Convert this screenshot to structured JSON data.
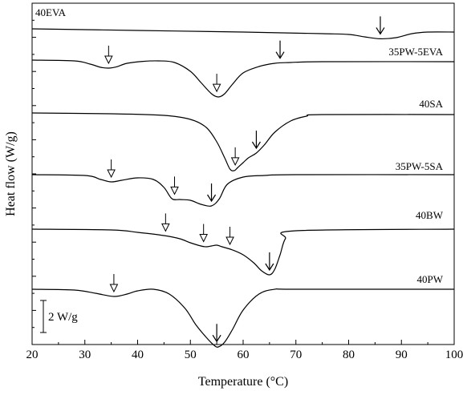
{
  "chart_data": {
    "type": "line",
    "xlabel": "Temperature (°C)",
    "ylabel": "Heat flow (W/g)",
    "xlim": [
      20,
      100
    ],
    "x_ticks": [
      "20",
      "30",
      "40",
      "50",
      "60",
      "70",
      "80",
      "90",
      "100"
    ],
    "scale_bar": {
      "label": "2 W/g",
      "value": 2,
      "unit": "W/g"
    },
    "series": [
      {
        "name": "40EVA",
        "x": [
          20,
          40,
          60,
          75,
          80,
          83,
          86,
          89,
          92,
          95,
          100
        ],
        "y": [
          0.0,
          -0.1,
          -0.2,
          -0.3,
          -0.35,
          -0.5,
          -0.62,
          -0.55,
          -0.3,
          -0.2,
          -0.2
        ],
        "markers": [
          {
            "x": 86,
            "style": "line"
          }
        ]
      },
      {
        "name": "35PW-5EVA",
        "x": [
          20,
          28,
          31,
          33,
          34.5,
          36,
          38,
          41,
          44,
          47,
          50,
          52,
          54,
          55.3,
          56.5,
          58,
          60,
          63,
          66,
          69,
          75,
          100
        ],
        "y": [
          0.0,
          -0.05,
          -0.25,
          -0.45,
          -0.5,
          -0.42,
          -0.2,
          -0.08,
          -0.05,
          -0.15,
          -0.7,
          -1.4,
          -2.1,
          -2.3,
          -2.1,
          -1.5,
          -0.8,
          -0.4,
          -0.2,
          -0.15,
          -0.1,
          -0.1
        ],
        "markers": [
          {
            "x": 34.5,
            "style": "open"
          },
          {
            "x": 55,
            "style": "open"
          },
          {
            "x": 67,
            "style": "line"
          }
        ]
      },
      {
        "name": "40SA",
        "x": [
          20,
          35,
          45,
          50,
          53,
          55,
          56.5,
          57.5,
          58.3,
          59,
          60,
          61,
          62.5,
          64,
          66,
          69,
          72,
          75,
          100
        ],
        "y": [
          0.0,
          -0.05,
          -0.15,
          -0.4,
          -0.9,
          -1.8,
          -2.8,
          -3.5,
          -3.6,
          -3.4,
          -3.1,
          -2.8,
          -2.5,
          -2.0,
          -1.2,
          -0.5,
          -0.2,
          -0.1,
          -0.1
        ],
        "markers": [
          {
            "x": 58.5,
            "style": "open"
          },
          {
            "x": 62.5,
            "style": "line"
          }
        ]
      },
      {
        "name": "35PW-5SA",
        "x": [
          20,
          30,
          33,
          35,
          37,
          40,
          43,
          45,
          46.5,
          48,
          50,
          52,
          54,
          55.5,
          57,
          60,
          64,
          70,
          100
        ],
        "y": [
          0.0,
          -0.05,
          -0.3,
          -0.45,
          -0.35,
          -0.2,
          -0.3,
          -0.8,
          -1.5,
          -1.55,
          -1.6,
          -1.85,
          -1.95,
          -1.5,
          -0.6,
          -0.15,
          -0.05,
          0.0,
          0.0
        ],
        "markers": [
          {
            "x": 35,
            "style": "open"
          },
          {
            "x": 47,
            "style": "open"
          },
          {
            "x": 54,
            "style": "line"
          }
        ]
      },
      {
        "name": "40BW",
        "x": [
          20,
          35,
          40,
          45,
          48,
          50,
          52,
          53,
          54,
          55,
          56,
          58,
          60,
          62,
          63.5,
          65,
          66,
          67,
          68,
          70,
          100
        ],
        "y": [
          0.0,
          -0.05,
          -0.2,
          -0.4,
          -0.6,
          -0.85,
          -1.05,
          -1.1,
          -1.05,
          -1.0,
          -1.1,
          -1.3,
          -1.6,
          -2.1,
          -2.6,
          -2.85,
          -2.5,
          -1.6,
          -0.6,
          -0.1,
          0.0
        ],
        "markers": [
          {
            "x": 45.3,
            "style": "open"
          },
          {
            "x": 52.5,
            "style": "open"
          },
          {
            "x": 57.5,
            "style": "open"
          },
          {
            "x": 65,
            "style": "line"
          }
        ]
      },
      {
        "name": "40PW",
        "x": [
          20,
          28,
          32,
          35.5,
          38,
          40,
          43,
          46,
          49,
          51,
          53,
          54.5,
          55.3,
          56.5,
          58,
          60,
          63,
          66,
          70,
          100
        ],
        "y": [
          0.0,
          -0.05,
          -0.25,
          -0.45,
          -0.3,
          -0.1,
          0.0,
          -0.3,
          -1.2,
          -2.2,
          -3.0,
          -3.5,
          -3.6,
          -3.3,
          -2.5,
          -1.3,
          -0.3,
          0.0,
          0.0,
          0.0
        ],
        "markers": [
          {
            "x": 35.5,
            "style": "open"
          },
          {
            "x": 55,
            "style": "line"
          }
        ]
      }
    ]
  }
}
